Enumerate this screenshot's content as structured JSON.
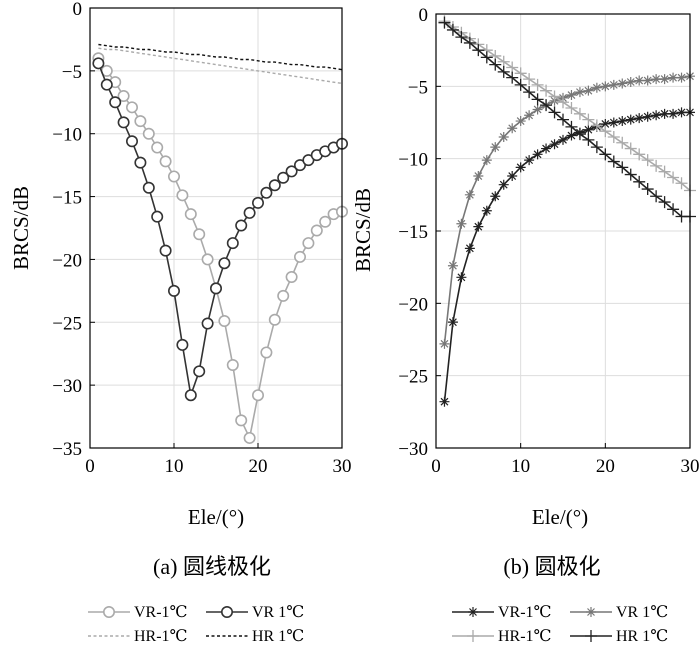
{
  "chart_data": [
    {
      "type": "line",
      "title": "(a) 圆线极化",
      "xlabel": "Ele/(°)",
      "ylabel": "BRCS/dB",
      "xlim": [
        0,
        30
      ],
      "ylim": [
        -35,
        0
      ],
      "grid": true,
      "xticks": [
        0,
        10,
        20,
        30
      ],
      "yticks": [
        0,
        -5,
        -10,
        -15,
        -20,
        -25,
        -30,
        -35
      ],
      "x": [
        1,
        2,
        3,
        4,
        5,
        6,
        7,
        8,
        9,
        10,
        11,
        12,
        13,
        14,
        15,
        16,
        17,
        18,
        19,
        20,
        21,
        22,
        23,
        24,
        25,
        26,
        27,
        28,
        29,
        30
      ],
      "series": [
        {
          "name": "VR-1℃",
          "color": "#aaaaaa",
          "marker": "circle",
          "dash": "solid",
          "values": [
            -4.0,
            -5.0,
            -5.9,
            -7.0,
            -7.9,
            -9.0,
            -10.0,
            -11.1,
            -12.2,
            -13.4,
            -14.9,
            -16.4,
            -18.0,
            -20.0,
            -22.3,
            -24.9,
            -28.4,
            -32.8,
            -34.2,
            -30.8,
            -27.4,
            -24.8,
            -22.9,
            -21.4,
            -19.8,
            -18.7,
            -17.7,
            -17.0,
            -16.4,
            -16.2
          ]
        },
        {
          "name": "VR 1℃",
          "color": "#333333",
          "marker": "circle",
          "dash": "solid",
          "values": [
            -4.4,
            -6.1,
            -7.5,
            -9.1,
            -10.6,
            -12.3,
            -14.3,
            -16.6,
            -19.3,
            -22.5,
            -26.8,
            -30.8,
            -28.9,
            -25.1,
            -22.3,
            -20.3,
            -18.7,
            -17.3,
            -16.3,
            -15.5,
            -14.7,
            -14.1,
            -13.5,
            -13.0,
            -12.5,
            -12.1,
            -11.7,
            -11.4,
            -11.1,
            -10.8
          ]
        },
        {
          "name": "HR-1℃",
          "color": "#aaaaaa",
          "marker": "none",
          "dash": "dashed",
          "values": [
            -3.2,
            -3.3,
            -3.3,
            -3.4,
            -3.5,
            -3.6,
            -3.7,
            -3.8,
            -3.9,
            -4.0,
            -4.1,
            -4.2,
            -4.3,
            -4.4,
            -4.5,
            -4.6,
            -4.7,
            -4.8,
            -4.9,
            -5.0,
            -5.1,
            -5.2,
            -5.3,
            -5.4,
            -5.5,
            -5.6,
            -5.7,
            -5.8,
            -5.9,
            -6.0
          ]
        },
        {
          "name": "HR 1℃",
          "color": "#111111",
          "marker": "none",
          "dash": "dashed",
          "values": [
            -2.9,
            -3.0,
            -3.1,
            -3.1,
            -3.2,
            -3.3,
            -3.3,
            -3.4,
            -3.5,
            -3.5,
            -3.6,
            -3.7,
            -3.7,
            -3.8,
            -3.9,
            -3.9,
            -4.0,
            -4.1,
            -4.1,
            -4.2,
            -4.3,
            -4.3,
            -4.4,
            -4.5,
            -4.5,
            -4.6,
            -4.7,
            -4.7,
            -4.8,
            -4.9
          ]
        }
      ]
    },
    {
      "type": "line",
      "title": "(b) 圆极化",
      "xlabel": "Ele/(°)",
      "ylabel": "BRCS/dB",
      "xlim": [
        0,
        30
      ],
      "ylim": [
        -30,
        0
      ],
      "grid": true,
      "xticks": [
        0,
        10,
        20,
        30
      ],
      "yticks": [
        0,
        -5,
        -10,
        -15,
        -20,
        -25,
        -30
      ],
      "x": [
        1,
        2,
        3,
        4,
        5,
        6,
        7,
        8,
        9,
        10,
        11,
        12,
        13,
        14,
        15,
        16,
        17,
        18,
        19,
        20,
        21,
        22,
        23,
        24,
        25,
        26,
        27,
        28,
        29,
        30
      ],
      "series": [
        {
          "name": "VR-1℃",
          "color": "#222222",
          "marker": "asterisk",
          "dash": "solid",
          "values": [
            -26.8,
            -21.3,
            -18.2,
            -16.2,
            -14.7,
            -13.6,
            -12.6,
            -11.8,
            -11.2,
            -10.6,
            -10.1,
            -9.7,
            -9.3,
            -9.0,
            -8.7,
            -8.4,
            -8.2,
            -8.0,
            -7.8,
            -7.6,
            -7.5,
            -7.4,
            -7.3,
            -7.2,
            -7.1,
            -7.0,
            -6.9,
            -6.9,
            -6.8,
            -6.8
          ]
        },
        {
          "name": "VR 1℃",
          "color": "#777777",
          "marker": "asterisk",
          "dash": "solid",
          "values": [
            -22.8,
            -17.4,
            -14.5,
            -12.5,
            -11.2,
            -10.1,
            -9.2,
            -8.5,
            -7.9,
            -7.4,
            -7.0,
            -6.6,
            -6.3,
            -6.0,
            -5.8,
            -5.6,
            -5.4,
            -5.3,
            -5.1,
            -5.0,
            -4.9,
            -4.8,
            -4.7,
            -4.6,
            -4.6,
            -4.5,
            -4.5,
            -4.4,
            -4.4,
            -4.3
          ]
        },
        {
          "name": "HR-1℃",
          "color": "#aaaaaa",
          "marker": "plus",
          "dash": "solid",
          "values": [
            -0.5,
            -0.9,
            -1.3,
            -1.7,
            -2.1,
            -2.5,
            -2.9,
            -3.3,
            -3.7,
            -4.1,
            -4.5,
            -4.9,
            -5.3,
            -5.7,
            -6.1,
            -6.5,
            -6.9,
            -7.3,
            -7.7,
            -8.1,
            -8.5,
            -8.9,
            -9.3,
            -9.7,
            -10.1,
            -10.5,
            -10.9,
            -11.3,
            -11.7,
            -12.2
          ]
        },
        {
          "name": "HR 1℃",
          "color": "#222222",
          "marker": "plus",
          "dash": "solid",
          "values": [
            -0.6,
            -1.1,
            -1.6,
            -2.0,
            -2.5,
            -3.0,
            -3.5,
            -4.0,
            -4.4,
            -4.9,
            -5.4,
            -5.9,
            -6.3,
            -6.8,
            -7.3,
            -7.8,
            -8.3,
            -8.7,
            -9.2,
            -9.7,
            -10.2,
            -10.6,
            -11.1,
            -11.6,
            -12.1,
            -12.6,
            -13.0,
            -13.5,
            -14.0,
            -14.0
          ]
        }
      ]
    }
  ]
}
